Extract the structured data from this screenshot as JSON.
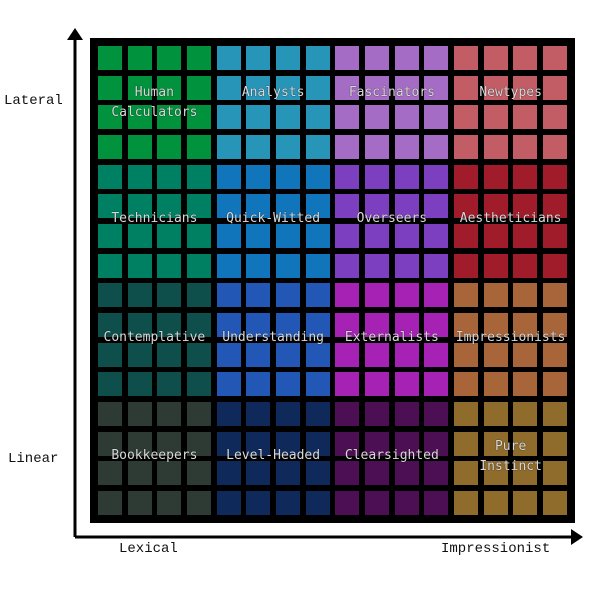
{
  "axes": {
    "y_top_label": "Lateral",
    "y_bottom_label": "Linear",
    "x_left_label": "Lexical",
    "x_right_label": "Impressionist"
  },
  "grid": {
    "columns": 4,
    "rows": 4,
    "tiles_per_side": 4,
    "categories": [
      {
        "row": 0,
        "col": 0,
        "label_lines": [
          "Human",
          "Calculators"
        ],
        "color": "#00923c"
      },
      {
        "row": 0,
        "col": 1,
        "label_lines": [
          "Analysts"
        ],
        "color": "#2795b8"
      },
      {
        "row": 0,
        "col": 2,
        "label_lines": [
          "Fascinators"
        ],
        "color": "#a56cc5"
      },
      {
        "row": 0,
        "col": 3,
        "label_lines": [
          "Newtypes"
        ],
        "color": "#c25c65"
      },
      {
        "row": 1,
        "col": 0,
        "label_lines": [
          "Technicians"
        ],
        "color": "#008063"
      },
      {
        "row": 1,
        "col": 1,
        "label_lines": [
          "Quick-Witted"
        ],
        "color": "#1175bb"
      },
      {
        "row": 1,
        "col": 2,
        "label_lines": [
          "Overseers"
        ],
        "color": "#7c3fbf"
      },
      {
        "row": 1,
        "col": 3,
        "label_lines": [
          "Aestheticians"
        ],
        "color": "#a01c2a"
      },
      {
        "row": 2,
        "col": 0,
        "label_lines": [
          "Contemplative"
        ],
        "color": "#0f4f4b"
      },
      {
        "row": 2,
        "col": 1,
        "label_lines": [
          "Understanding"
        ],
        "color": "#2357b5"
      },
      {
        "row": 2,
        "col": 2,
        "label_lines": [
          "Externalists"
        ],
        "color": "#a522b4"
      },
      {
        "row": 2,
        "col": 3,
        "label_lines": [
          "Impressionists"
        ],
        "color": "#a9653a"
      },
      {
        "row": 3,
        "col": 0,
        "label_lines": [
          "Bookkeepers"
        ],
        "color": "#2e3b34"
      },
      {
        "row": 3,
        "col": 1,
        "label_lines": [
          "Level-Headed"
        ],
        "color": "#0f2a5a"
      },
      {
        "row": 3,
        "col": 2,
        "label_lines": [
          "Clearsighted"
        ],
        "color": "#4d0f53"
      },
      {
        "row": 3,
        "col": 3,
        "label_lines": [
          "Pure",
          "Instinct"
        ],
        "color": "#8f6b2c"
      }
    ]
  }
}
